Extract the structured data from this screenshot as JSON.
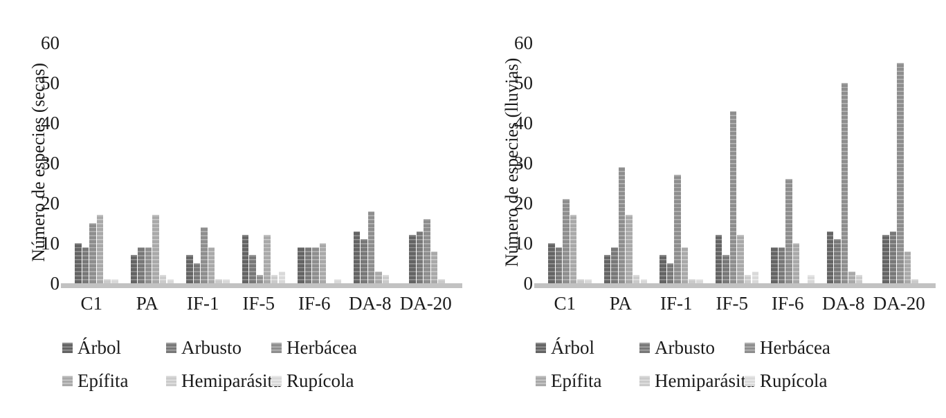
{
  "figure": {
    "background": "#ffffff",
    "axis_strip_color": "#c2c2c2",
    "text_color": "#1a1a1a",
    "series_styles": [
      {
        "name": "Árbol",
        "color": "#646464",
        "stripe": "#989898"
      },
      {
        "name": "Arbusto",
        "color": "#787878",
        "stripe": "#a8a8a8"
      },
      {
        "name": "Herbácea",
        "color": "#8e8e8e",
        "stripe": "#b8b8b8"
      },
      {
        "name": "Epífita",
        "color": "#a9a9a9",
        "stripe": "#cccccc"
      },
      {
        "name": "Hemiparásita",
        "color": "#cbcbcb",
        "stripe": "#e2e2e2"
      },
      {
        "name": "Rupícola",
        "color": "#d9d9d9",
        "stripe": "#ededed"
      }
    ]
  },
  "chart_data": [
    {
      "type": "bar",
      "title": "",
      "xlabel": "",
      "ylabel": "Número de especies (secas)",
      "ylim": [
        0,
        60
      ],
      "yticks": [
        0,
        10,
        20,
        30,
        40,
        50,
        60
      ],
      "grid": false,
      "legend_position": "bottom",
      "categories": [
        "C1",
        "PA",
        "IF-1",
        "IF-5",
        "IF-6",
        "DA-8",
        "DA-20"
      ],
      "series": [
        {
          "name": "Árbol",
          "values": [
            10,
            7,
            7,
            12,
            9,
            13,
            12
          ]
        },
        {
          "name": "Arbusto",
          "values": [
            9,
            9,
            5,
            7,
            9,
            11,
            13
          ]
        },
        {
          "name": "Herbácea",
          "values": [
            15,
            9,
            14,
            2,
            9,
            18,
            16
          ]
        },
        {
          "name": "Epífita",
          "values": [
            17,
            17,
            9,
            12,
            10,
            3,
            8
          ]
        },
        {
          "name": "Hemiparásita",
          "values": [
            1,
            2,
            1,
            2,
            0,
            2,
            1
          ]
        },
        {
          "name": "Rupícola",
          "values": [
            1,
            1,
            1,
            3,
            1,
            0,
            0
          ]
        }
      ]
    },
    {
      "type": "bar",
      "title": "",
      "xlabel": "",
      "ylabel": "Número de especies (lluvias)",
      "ylim": [
        0,
        60
      ],
      "yticks": [
        0,
        10,
        20,
        30,
        40,
        50,
        60
      ],
      "grid": false,
      "legend_position": "bottom",
      "categories": [
        "C1",
        "PA",
        "IF-1",
        "IF-5",
        "IF-6",
        "DA-8",
        "DA-20"
      ],
      "series": [
        {
          "name": "Árbol",
          "values": [
            10,
            7,
            7,
            12,
            9,
            13,
            12
          ]
        },
        {
          "name": "Arbusto",
          "values": [
            9,
            9,
            5,
            7,
            9,
            11,
            13
          ]
        },
        {
          "name": "Herbácea",
          "values": [
            21,
            29,
            27,
            43,
            26,
            50,
            55
          ]
        },
        {
          "name": "Epífita",
          "values": [
            17,
            17,
            9,
            12,
            10,
            3,
            8
          ]
        },
        {
          "name": "Hemiparásita",
          "values": [
            1,
            2,
            1,
            2,
            0,
            2,
            1
          ]
        },
        {
          "name": "Rupícola",
          "values": [
            1,
            1,
            1,
            3,
            2,
            0,
            0
          ]
        }
      ]
    }
  ]
}
